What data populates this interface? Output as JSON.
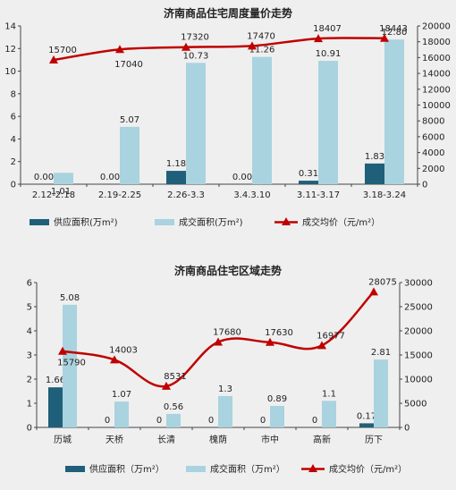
{
  "colors": {
    "supply": "#1f5f7a",
    "sales": "#a9d3df",
    "price": "#c00000",
    "axis": "#444444",
    "background": "#efefef"
  },
  "chart_data": [
    {
      "type": "bar",
      "title": "济南商品住宅周度量价走势",
      "categories": [
        "2.12-2.18",
        "2.19-2.25",
        "2.26-3.3",
        "3.4.3.10",
        "3.11-3.17",
        "3.18-3.24"
      ],
      "series": [
        {
          "name": "供应面积(万m²)",
          "type": "bar",
          "axis": "left",
          "values": [
            0.0,
            0.0,
            1.18,
            0.0,
            0.31,
            1.83
          ],
          "labels": [
            "0.00",
            "0.00",
            "1.18",
            "0.00",
            "0.31",
            "1.83"
          ]
        },
        {
          "name": "成交面积(万m²)",
          "type": "bar",
          "axis": "left",
          "values": [
            1.01,
            5.07,
            10.73,
            11.26,
            10.91,
            12.8
          ],
          "labels": [
            "1.01",
            "5.07",
            "10.73",
            "11.26",
            "10.91",
            "12.80"
          ]
        },
        {
          "name": "成交均价（元/m²）",
          "type": "line",
          "axis": "right",
          "values": [
            15700,
            17040,
            17320,
            17470,
            18407,
            18443
          ],
          "labels": [
            "15700",
            "17040",
            "17320",
            "17470",
            "18407",
            "18443"
          ]
        }
      ],
      "ylim_left": [
        0,
        14
      ],
      "yticks_left": [
        "0",
        "2",
        "4",
        "6",
        "8",
        "10",
        "12",
        "14"
      ],
      "ylim_right": [
        0,
        20000
      ],
      "yticks_right": [
        "0",
        "2000",
        "4000",
        "6000",
        "8000",
        "10000",
        "12000",
        "14000",
        "16000",
        "18000",
        "20000"
      ],
      "legend_position": "bottom"
    },
    {
      "type": "bar",
      "title": "济南商品住宅区域走势",
      "categories": [
        "历城",
        "天桥",
        "长清",
        "槐荫",
        "市中",
        "高新",
        "历下"
      ],
      "series": [
        {
          "name": "供应面积（万m²）",
          "type": "bar",
          "axis": "left",
          "values": [
            1.66,
            0,
            0,
            0,
            0,
            0,
            0.17
          ],
          "labels": [
            "1.66",
            "0",
            "0",
            "0",
            "0",
            "0",
            "0.17"
          ]
        },
        {
          "name": "成交面积（万m²）",
          "type": "bar",
          "axis": "left",
          "values": [
            5.08,
            1.07,
            0.56,
            1.3,
            0.89,
            1.1,
            2.81
          ],
          "labels": [
            "5.08",
            "1.07",
            "0.56",
            "1.3",
            "0.89",
            "1.1",
            "2.81"
          ]
        },
        {
          "name": "成交均价（元/m²）",
          "type": "line",
          "axis": "right",
          "values": [
            15790,
            14003,
            8531,
            17680,
            17630,
            16977,
            28075
          ],
          "labels": [
            "15790",
            "14003",
            "8531",
            "17680",
            "17630",
            "16977",
            "28075"
          ]
        }
      ],
      "ylim_left": [
        0,
        6
      ],
      "yticks_left": [
        "0",
        "1",
        "2",
        "3",
        "4",
        "5",
        "6"
      ],
      "ylim_right": [
        0,
        30000
      ],
      "yticks_right": [
        "0",
        "5000",
        "10000",
        "15000",
        "20000",
        "25000",
        "30000"
      ],
      "legend_position": "bottom"
    }
  ]
}
